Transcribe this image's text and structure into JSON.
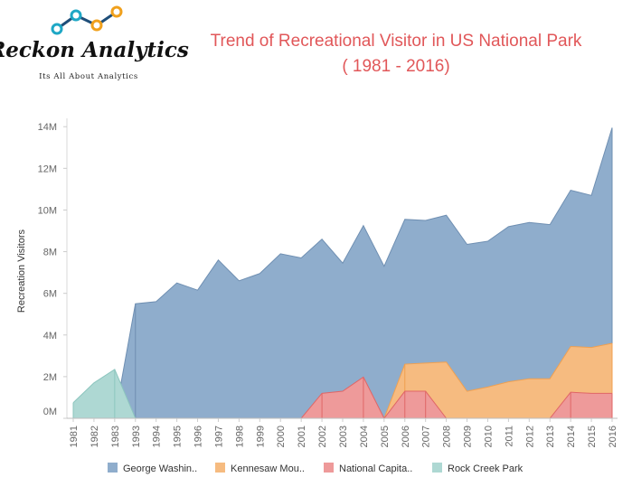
{
  "logo": {
    "name": "Reckon Analytics",
    "tagline": "Its All About Analytics",
    "colors": [
      "#1ea7c5",
      "#1ea7c5",
      "#f0a01c",
      "#f0a01c"
    ]
  },
  "chart_data": {
    "type": "area",
    "title_lines": [
      "Trend of Recreational Visitor in US National Park",
      "( 1981 - 2016)"
    ],
    "title_color": "#e15759",
    "xlabel": "",
    "ylabel": "Recreation Visitors",
    "categories": [
      "1981",
      "1982",
      "1983",
      "1993",
      "1994",
      "1995",
      "1996",
      "1997",
      "1998",
      "1999",
      "2000",
      "2001",
      "2002",
      "2003",
      "2004",
      "2005",
      "2006",
      "2007",
      "2008",
      "2009",
      "2010",
      "2011",
      "2012",
      "2013",
      "2014",
      "2015",
      "2016"
    ],
    "y_ticks": [
      {
        "value": 0,
        "label": "0M"
      },
      {
        "value": 2000000,
        "label": "2M"
      },
      {
        "value": 4000000,
        "label": "4M"
      },
      {
        "value": 6000000,
        "label": "6M"
      },
      {
        "value": 8000000,
        "label": "8M"
      },
      {
        "value": 10000000,
        "label": "10M"
      },
      {
        "value": 12000000,
        "label": "12M"
      },
      {
        "value": 14000000,
        "label": "14M"
      }
    ],
    "ylim": [
      0,
      14400000
    ],
    "grid": false,
    "legend_position": "bottom",
    "series": [
      {
        "name": "George Washin..",
        "color": "#8fadcc",
        "edge": "#6f8fb2",
        "values": [
          0,
          0,
          0,
          5500000,
          5600000,
          6500000,
          6150000,
          7600000,
          6600000,
          6950000,
          7900000,
          7700000,
          8600000,
          7450000,
          9250000,
          7300000,
          9550000,
          9500000,
          9750000,
          8350000,
          8500000,
          9200000,
          9400000,
          9300000,
          10950000,
          10700000,
          13950000
        ]
      },
      {
        "name": "Kennesaw Mou..",
        "color": "#f6bb80",
        "edge": "#f0a050",
        "values": [
          0,
          0,
          0,
          0,
          0,
          0,
          0,
          0,
          0,
          0,
          0,
          0,
          0,
          0,
          0,
          0,
          2600000,
          2650000,
          2700000,
          1300000,
          1500000,
          1750000,
          1900000,
          1900000,
          3450000,
          3400000,
          3600000
        ]
      },
      {
        "name": "National Capita..",
        "color": "#ee9a9a",
        "edge": "#e06666",
        "values": [
          0,
          0,
          0,
          0,
          0,
          0,
          0,
          0,
          0,
          0,
          0,
          0,
          1200000,
          1300000,
          1980000,
          0,
          1300000,
          1300000,
          0,
          0,
          0,
          0,
          0,
          0,
          1250000,
          1200000,
          1200000
        ]
      },
      {
        "name": "Rock Creek Park",
        "color": "#aed8d3",
        "edge": "#8cc5be",
        "values": [
          750000,
          1700000,
          2350000,
          0,
          0,
          0,
          0,
          0,
          0,
          0,
          0,
          0,
          0,
          0,
          0,
          0,
          0,
          0,
          0,
          0,
          0,
          0,
          0,
          0,
          0,
          0,
          0
        ]
      }
    ]
  }
}
